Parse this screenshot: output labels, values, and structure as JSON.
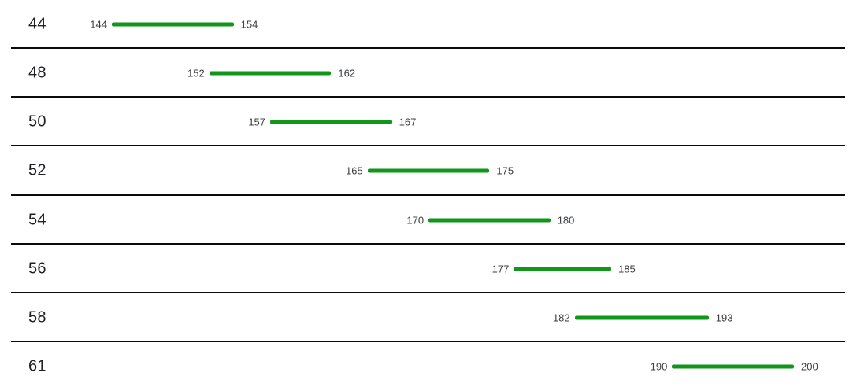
{
  "chart_data": {
    "type": "bar",
    "variant": "horizontal-range-bars",
    "title": "",
    "xlabel": "",
    "ylabel": "",
    "categories": [
      "44",
      "48",
      "50",
      "52",
      "54",
      "56",
      "58",
      "61"
    ],
    "rows": [
      {
        "size": "44",
        "min": 144,
        "max": 154
      },
      {
        "size": "48",
        "min": 152,
        "max": 162
      },
      {
        "size": "50",
        "min": 157,
        "max": 167
      },
      {
        "size": "52",
        "min": 165,
        "max": 175
      },
      {
        "size": "54",
        "min": 170,
        "max": 180
      },
      {
        "size": "56",
        "min": 177,
        "max": 185
      },
      {
        "size": "58",
        "min": 182,
        "max": 193
      },
      {
        "size": "61",
        "min": 190,
        "max": 200
      }
    ],
    "xlim": [
      144,
      200
    ],
    "bar_color": "#109618",
    "grid": "horizontal-row-dividers",
    "legend": "none"
  },
  "colors": {
    "bar": "#109618",
    "divider": "#0b0b0b",
    "size_label": "#202124",
    "value_label": "#3c4043",
    "background": "#ffffff"
  }
}
